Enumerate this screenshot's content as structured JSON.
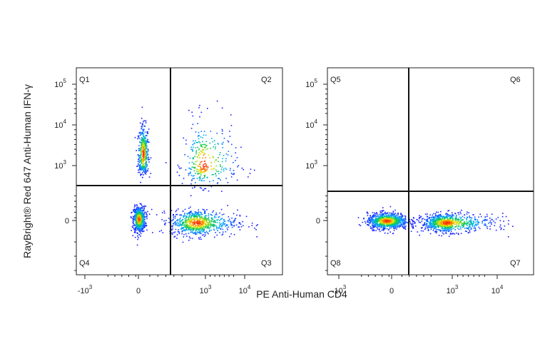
{
  "chart_data": {
    "type": "scatter",
    "ylabel": "RayBright® Red 647 Anti-Human IFN-γ",
    "xlabel": "PE Anti-Human CD4",
    "x_ticks": [
      {
        "label": "-10",
        "exp": "3"
      },
      {
        "label": "0",
        "exp": ""
      },
      {
        "label": "10",
        "exp": "3"
      },
      {
        "label": "10",
        "exp": "4"
      }
    ],
    "y_ticks": [
      {
        "label": "10",
        "exp": "5"
      },
      {
        "label": "10",
        "exp": "4"
      },
      {
        "label": "10",
        "exp": "3"
      },
      {
        "label": "0",
        "exp": ""
      }
    ],
    "colors": {
      "axis": "#222222",
      "gate": "#111111",
      "density_low": "#1a1aff",
      "density_high": "#ff2a00"
    },
    "panels": [
      {
        "quadrants": [
          "Q1",
          "Q2",
          "Q3",
          "Q4"
        ],
        "gate": {
          "x_label": "between 0 and 10^3",
          "y_label": "between 0 and 10^3"
        },
        "populations": [
          {
            "name_hint": "CD4- IFN-γ+",
            "cx": 0.2,
            "cy": 3.3,
            "sx": 0.12,
            "sy": 0.35,
            "n": 420
          },
          {
            "name_hint": "CD4- IFN-γ-",
            "cx": 0.0,
            "cy": 0.1,
            "sx": 0.15,
            "sy": 0.35,
            "n": 650
          },
          {
            "name_hint": "CD4+ IFN-γ+",
            "cx": 2.9,
            "cy": 3.0,
            "sx": 0.45,
            "sy": 0.55,
            "n": 340
          },
          {
            "name_hint": "CD4+ IFN-γ-",
            "cx": 2.6,
            "cy": -0.1,
            "sx": 0.6,
            "sy": 0.35,
            "n": 750
          }
        ]
      },
      {
        "quadrants": [
          "Q5",
          "Q6",
          "Q7",
          "Q8"
        ],
        "gate": {
          "x_label": "between 0 and 10^3",
          "y_label": "between 0 and 10^3"
        },
        "populations": [
          {
            "name_hint": "CD4- IFN-γ-",
            "cx": -0.3,
            "cy": 0.0,
            "sx": 0.55,
            "sy": 0.22,
            "n": 900
          },
          {
            "name_hint": "CD4+ IFN-γ-",
            "cx": 2.7,
            "cy": -0.1,
            "sx": 0.6,
            "sy": 0.25,
            "n": 850
          }
        ]
      }
    ]
  }
}
